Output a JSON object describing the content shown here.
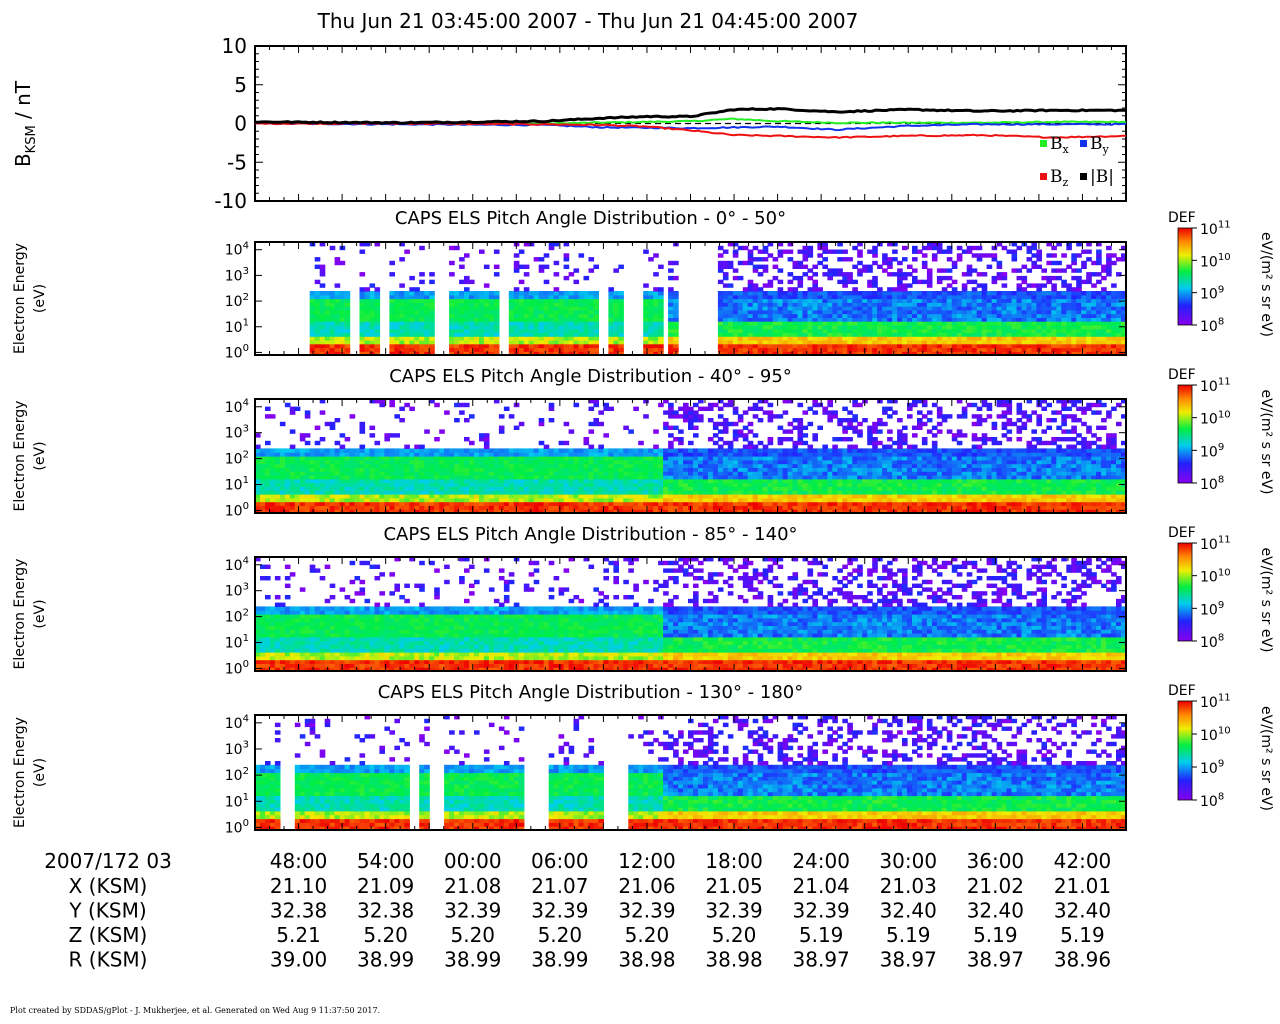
{
  "title": "Thu Jun 21 03:45:00 2007 - Thu Jun 21 04:45:00 2007",
  "footer": "Plot created by SDDAS/gPlot - J. Mukherjee, et al.  Generated on Wed Aug 9 11:37:50 2017.",
  "mag_panel": {
    "ylabel": "B",
    "ylabel_sub": "KSM",
    "ylabel_unit": " / nT",
    "ylim": [
      -10,
      10
    ],
    "yticks": [
      "10",
      "5",
      "0",
      "-5",
      "-10"
    ],
    "legend": [
      {
        "name": "B",
        "sub": "x",
        "color": "#22ee22"
      },
      {
        "name": "B",
        "sub": "y",
        "color": "#1133ee"
      },
      {
        "name": "B",
        "sub": "z",
        "color": "#ee1111"
      },
      {
        "name": "|B|",
        "sub": "",
        "color": "#000000"
      }
    ]
  },
  "spec_panels": [
    {
      "title": "CAPS ELS Pitch Angle Distribution - 0° - 50°"
    },
    {
      "title": "CAPS ELS Pitch Angle Distribution - 40° - 95°"
    },
    {
      "title": "CAPS ELS Pitch Angle Distribution - 85° - 140°"
    },
    {
      "title": "CAPS ELS Pitch Angle Distribution - 130° - 180°"
    }
  ],
  "spec_ylabel_line1": "Electron Energy",
  "spec_ylabel_line2": "(eV)",
  "spec_yticks": [
    {
      "base": "10",
      "exp": "4"
    },
    {
      "base": "10",
      "exp": "3"
    },
    {
      "base": "10",
      "exp": "2"
    },
    {
      "base": "10",
      "exp": "1"
    },
    {
      "base": "10",
      "exp": "0"
    }
  ],
  "colorbar": {
    "label": "DEF",
    "unit": "eV/(m² s sr eV)",
    "ticks": [
      {
        "base": "10",
        "exp": "11"
      },
      {
        "base": "10",
        "exp": "10"
      },
      {
        "base": "10",
        "exp": "9"
      },
      {
        "base": "10",
        "exp": "8"
      }
    ]
  },
  "ephemeris": {
    "header": "2007/172 03",
    "row_labels": [
      "X (KSM)",
      "Y (KSM)",
      "Z (KSM)",
      "R (KSM)"
    ],
    "times": [
      "48:00",
      "54:00",
      "00:00",
      "06:00",
      "12:00",
      "18:00",
      "24:00",
      "30:00",
      "36:00",
      "42:00"
    ],
    "rows": [
      [
        "21.10",
        "21.09",
        "21.08",
        "21.07",
        "21.06",
        "21.05",
        "21.04",
        "21.03",
        "21.02",
        "21.01"
      ],
      [
        "32.38",
        "32.38",
        "32.39",
        "32.39",
        "32.39",
        "32.39",
        "32.39",
        "32.40",
        "32.40",
        "32.40"
      ],
      [
        "5.21",
        "5.20",
        "5.20",
        "5.20",
        "5.20",
        "5.20",
        "5.19",
        "5.19",
        "5.19",
        "5.19"
      ],
      [
        "39.00",
        "38.99",
        "38.99",
        "38.99",
        "38.98",
        "38.98",
        "38.97",
        "38.97",
        "38.97",
        "38.96"
      ]
    ]
  },
  "chart_data": [
    {
      "type": "line",
      "x_unit": "minutes after 03:45",
      "xlim": [
        0,
        60
      ],
      "ylim": [
        -10,
        10
      ],
      "ylabel": "BKSM / nT",
      "series": [
        {
          "name": "Bx",
          "color": "#22ee22",
          "x": [
            0,
            10,
            20,
            30,
            33,
            36,
            40,
            45,
            50,
            55,
            60
          ],
          "values": [
            0.1,
            0.0,
            0.0,
            0.3,
            0.6,
            0.3,
            0.1,
            0.1,
            0.1,
            0.2,
            0.2
          ]
        },
        {
          "name": "By",
          "color": "#1133ee",
          "x": [
            0,
            10,
            20,
            24,
            30,
            33,
            36,
            40,
            45,
            50,
            55,
            60
          ],
          "values": [
            0.0,
            -0.1,
            -0.2,
            -0.5,
            -0.6,
            -0.5,
            -0.4,
            -0.8,
            -0.3,
            -0.1,
            -0.1,
            -0.1
          ]
        },
        {
          "name": "Bz",
          "color": "#ee1111",
          "x": [
            0,
            10,
            20,
            24,
            27,
            30,
            33,
            36,
            40,
            45,
            50,
            55,
            60
          ],
          "values": [
            0.0,
            0.0,
            -0.1,
            -0.2,
            -0.4,
            -0.9,
            -1.5,
            -1.6,
            -1.8,
            -1.6,
            -1.5,
            -1.8,
            -1.6
          ]
        },
        {
          "name": "|B|",
          "color": "#000000",
          "x": [
            0,
            10,
            20,
            24,
            27,
            30,
            33,
            36,
            40,
            45,
            50,
            55,
            60
          ],
          "values": [
            0.2,
            0.1,
            0.3,
            0.7,
            0.9,
            0.9,
            1.8,
            1.9,
            1.5,
            1.8,
            1.6,
            1.7,
            1.7
          ]
        }
      ]
    },
    {
      "type": "heatmap",
      "title": "CAPS ELS Pitch Angle Distribution - 0° - 50°",
      "ylabel": "Electron Energy (eV)",
      "xlim": [
        0,
        60
      ],
      "ylim_log10_eV": [
        -0.1,
        4.3
      ],
      "zlabel": "DEF eV/(m² s sr eV)",
      "zlim_log10": [
        8,
        11
      ],
      "data_gaps_minutes": [
        [
          0,
          3.6
        ],
        [
          6.4,
          7.2
        ],
        [
          8.5,
          9.3
        ],
        [
          12.4,
          13.4
        ],
        [
          16.9,
          17.4
        ],
        [
          23.6,
          24.5
        ],
        [
          25.4,
          26.7
        ],
        [
          28.1,
          28.6
        ],
        [
          29.3,
          32.0
        ]
      ]
    },
    {
      "type": "heatmap",
      "title": "CAPS ELS Pitch Angle Distribution - 40° - 95°",
      "ylabel": "Electron Energy (eV)",
      "xlim": [
        0,
        60
      ],
      "ylim_log10_eV": [
        -0.1,
        4.3
      ],
      "zlabel": "DEF eV/(m² s sr eV)",
      "zlim_log10": [
        8,
        11
      ],
      "data_gaps_minutes": []
    },
    {
      "type": "heatmap",
      "title": "CAPS ELS Pitch Angle Distribution - 85° - 140°",
      "ylabel": "Electron Energy (eV)",
      "xlim": [
        0,
        60
      ],
      "ylim_log10_eV": [
        -0.1,
        4.3
      ],
      "zlabel": "DEF eV/(m² s sr eV)",
      "zlim_log10": [
        8,
        11
      ],
      "data_gaps_minutes": []
    },
    {
      "type": "heatmap",
      "title": "CAPS ELS Pitch Angle Distribution - 130° - 180°",
      "ylabel": "Electron Energy (eV)",
      "xlim": [
        0,
        60
      ],
      "ylim_log10_eV": [
        -0.1,
        4.3
      ],
      "zlabel": "DEF eV/(m² s sr eV)",
      "zlim_log10": [
        8,
        11
      ],
      "data_gaps_minutes": [
        [
          1.8,
          2.6
        ],
        [
          10.7,
          11.4
        ],
        [
          12.1,
          13.0
        ],
        [
          18.5,
          20.2
        ],
        [
          24.0,
          25.8
        ]
      ]
    }
  ]
}
